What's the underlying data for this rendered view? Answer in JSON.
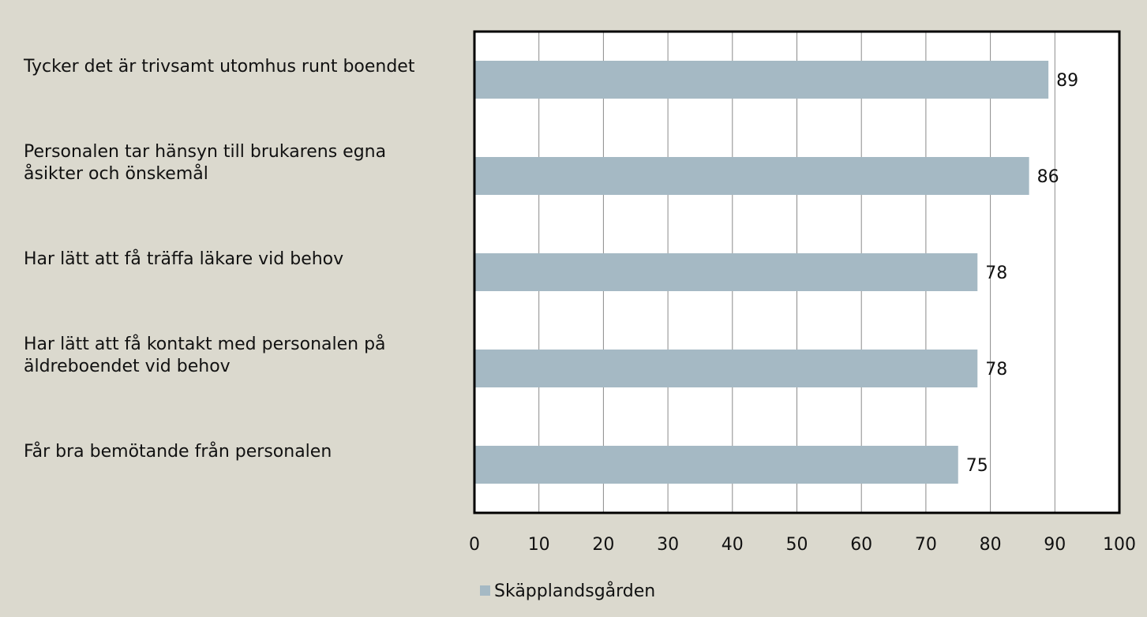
{
  "chart_data": {
    "type": "bar",
    "orientation": "horizontal",
    "categories": [
      "Tycker det är trivsamt utomhus runt boendet",
      "Personalen tar hänsyn till brukarens egna åsikter och önskemål",
      "Har lätt att få träffa läkare vid behov",
      "Har lätt att få kontakt med personalen på äldreboendet vid behov",
      "Får bra bemötande från personalen"
    ],
    "series": [
      {
        "name": "Skäpplandsgården",
        "color": "#a5b9c4",
        "values": [
          89,
          86,
          78,
          78,
          75
        ]
      }
    ],
    "xlim": [
      0,
      100
    ],
    "xticks": [
      0,
      10,
      20,
      30,
      40,
      50,
      60,
      70,
      80,
      90,
      100
    ],
    "grid": true,
    "legend": "bottom"
  }
}
